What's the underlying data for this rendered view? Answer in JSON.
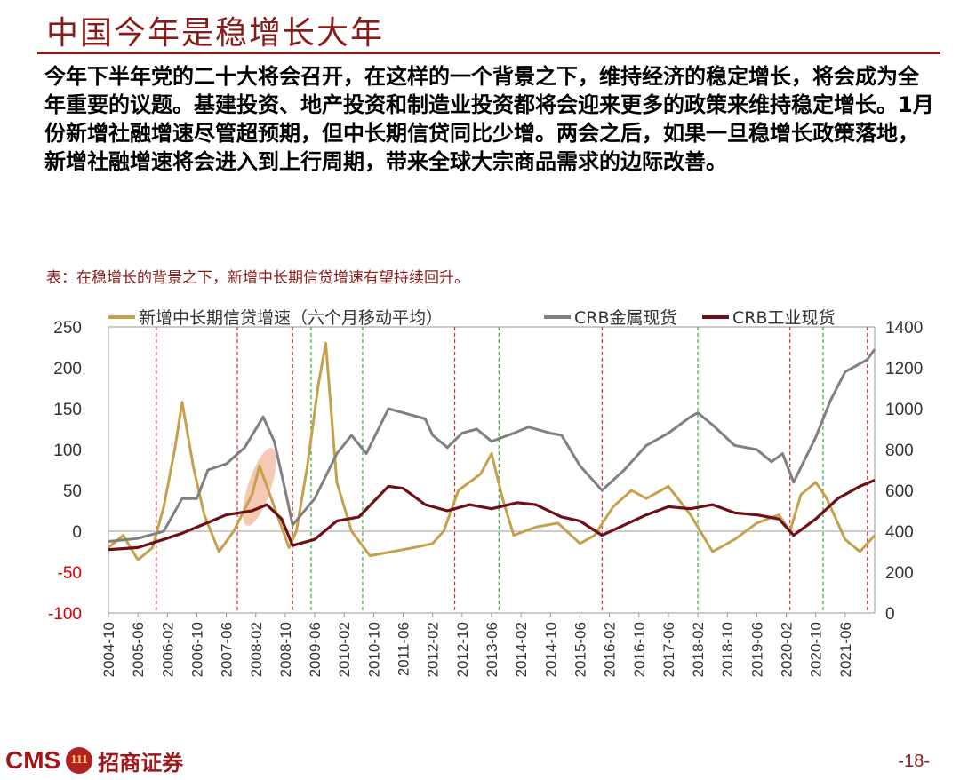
{
  "header": {
    "title": "中国今年是稳增长大年"
  },
  "body_text": "今年下半年党的二十大将会召开，在这样的一个背景之下，维持经济的稳定增长，将会成为全年重要的议题。基建投资、地产投资和制造业投资都将会迎来更多的政策来维持稳定增长。1月份新增社融增速尽管超预期，但中长期信贷同比少增。两会之后，如果一旦稳增长政策落地，新增社融增速将会进入到上行周期，带来全球大宗商品需求的边际改善。",
  "caption": "表：在稳增长的背景之下，新增中长期信贷增速有望持续回升。",
  "footer": {
    "brand_en": "CMS",
    "brand_logo": "111",
    "brand_cn": "招商证券",
    "page_number": "-18-"
  },
  "colors": {
    "brand": "#8b1a1a",
    "series_credit": "#c6a14b",
    "series_metal": "#808080",
    "series_industrial": "#6e0f16",
    "red_line": "#e03030",
    "green_line": "#2eaa45",
    "highlight": "#f2b79a"
  },
  "chart_data": {
    "type": "line",
    "title": "",
    "legend_position": "top",
    "x_start": "2004-10",
    "x_end": "2022-02",
    "x_tick_labels": [
      "2004-10",
      "2005-06",
      "2006-02",
      "2006-10",
      "2007-06",
      "2008-02",
      "2008-10",
      "2009-06",
      "2010-02",
      "2010-10",
      "2011-06",
      "2012-02",
      "2012-10",
      "2013-06",
      "2014-02",
      "2014-10",
      "2015-06",
      "2016-02",
      "2016-10",
      "2017-06",
      "2018-02",
      "2018-10",
      "2019-06",
      "2020-02",
      "2020-10",
      "2021-06"
    ],
    "y_left": {
      "range": [
        -100,
        250
      ],
      "ticks": [
        -100,
        -50,
        0,
        50,
        100,
        150,
        200,
        250
      ]
    },
    "y_right": {
      "range": [
        0,
        1400
      ],
      "ticks": [
        0,
        200,
        400,
        600,
        800,
        1000,
        1200,
        1400
      ]
    },
    "red_dashed_lines_x": [
      "2005-11",
      "2007-09",
      "2008-12",
      "2012-08",
      "2015-12",
      "2020-03",
      "2021-12"
    ],
    "green_dashed_lines_x": [
      "2009-05",
      "2010-07",
      "2013-08",
      "2018-02",
      "2020-12"
    ],
    "highlight_ellipse_center": {
      "x": "2008-03",
      "y": 50
    },
    "series": [
      {
        "name": "新增中长期信贷增速（六个月移动平均）",
        "axis": "left",
        "points": [
          [
            "2004-10",
            -20
          ],
          [
            "2005-02",
            -5
          ],
          [
            "2005-06",
            -35
          ],
          [
            "2005-10",
            -20
          ],
          [
            "2006-01",
            30
          ],
          [
            "2006-04",
            100
          ],
          [
            "2006-06",
            158
          ],
          [
            "2006-09",
            80
          ],
          [
            "2006-12",
            20
          ],
          [
            "2007-04",
            -25
          ],
          [
            "2007-08",
            0
          ],
          [
            "2008-01",
            45
          ],
          [
            "2008-03",
            80
          ],
          [
            "2008-07",
            30
          ],
          [
            "2008-11",
            -20
          ],
          [
            "2009-01",
            0
          ],
          [
            "2009-04",
            80
          ],
          [
            "2009-07",
            180
          ],
          [
            "2009-09",
            230
          ],
          [
            "2009-12",
            60
          ],
          [
            "2010-04",
            0
          ],
          [
            "2010-09",
            -30
          ],
          [
            "2011-03",
            -25
          ],
          [
            "2011-09",
            -20
          ],
          [
            "2012-02",
            -15
          ],
          [
            "2012-05",
            0
          ],
          [
            "2012-09",
            50
          ],
          [
            "2013-03",
            70
          ],
          [
            "2013-06",
            95
          ],
          [
            "2013-09",
            40
          ],
          [
            "2013-12",
            -5
          ],
          [
            "2014-06",
            5
          ],
          [
            "2014-12",
            10
          ],
          [
            "2015-06",
            -15
          ],
          [
            "2015-10",
            -5
          ],
          [
            "2016-03",
            30
          ],
          [
            "2016-08",
            50
          ],
          [
            "2016-12",
            40
          ],
          [
            "2017-06",
            55
          ],
          [
            "2017-12",
            20
          ],
          [
            "2018-06",
            -25
          ],
          [
            "2018-12",
            -10
          ],
          [
            "2019-06",
            10
          ],
          [
            "2019-12",
            20
          ],
          [
            "2020-03",
            0
          ],
          [
            "2020-06",
            45
          ],
          [
            "2020-10",
            60
          ],
          [
            "2021-01",
            40
          ],
          [
            "2021-06",
            -10
          ],
          [
            "2021-10",
            -25
          ],
          [
            "2022-02",
            -5
          ]
        ]
      },
      {
        "name": "CRB金属现货",
        "axis": "right",
        "points": [
          [
            "2004-10",
            350
          ],
          [
            "2005-06",
            365
          ],
          [
            "2006-01",
            400
          ],
          [
            "2006-06",
            560
          ],
          [
            "2006-10",
            560
          ],
          [
            "2007-01",
            700
          ],
          [
            "2007-06",
            730
          ],
          [
            "2007-11",
            810
          ],
          [
            "2008-04",
            960
          ],
          [
            "2008-07",
            840
          ],
          [
            "2008-10",
            600
          ],
          [
            "2008-12",
            430
          ],
          [
            "2009-06",
            560
          ],
          [
            "2009-12",
            780
          ],
          [
            "2010-04",
            870
          ],
          [
            "2010-08",
            780
          ],
          [
            "2011-02",
            1000
          ],
          [
            "2011-06",
            980
          ],
          [
            "2011-12",
            950
          ],
          [
            "2012-02",
            870
          ],
          [
            "2012-06",
            810
          ],
          [
            "2012-10",
            880
          ],
          [
            "2013-02",
            900
          ],
          [
            "2013-06",
            840
          ],
          [
            "2013-12",
            880
          ],
          [
            "2014-04",
            910
          ],
          [
            "2014-10",
            880
          ],
          [
            "2015-01",
            870
          ],
          [
            "2015-06",
            720
          ],
          [
            "2015-12",
            600
          ],
          [
            "2016-06",
            700
          ],
          [
            "2016-12",
            820
          ],
          [
            "2017-06",
            880
          ],
          [
            "2017-12",
            960
          ],
          [
            "2018-02",
            980
          ],
          [
            "2018-06",
            920
          ],
          [
            "2018-12",
            820
          ],
          [
            "2019-06",
            800
          ],
          [
            "2019-10",
            740
          ],
          [
            "2020-01",
            780
          ],
          [
            "2020-04",
            640
          ],
          [
            "2020-10",
            860
          ],
          [
            "2021-02",
            1040
          ],
          [
            "2021-06",
            1180
          ],
          [
            "2021-12",
            1240
          ],
          [
            "2022-02",
            1290
          ]
        ]
      },
      {
        "name": "CRB工业现货",
        "axis": "right",
        "points": [
          [
            "2004-10",
            310
          ],
          [
            "2005-06",
            320
          ],
          [
            "2006-01",
            360
          ],
          [
            "2006-06",
            390
          ],
          [
            "2006-10",
            420
          ],
          [
            "2007-06",
            480
          ],
          [
            "2008-01",
            500
          ],
          [
            "2008-05",
            530
          ],
          [
            "2008-09",
            460
          ],
          [
            "2008-12",
            330
          ],
          [
            "2009-06",
            360
          ],
          [
            "2009-12",
            450
          ],
          [
            "2010-06",
            470
          ],
          [
            "2011-02",
            620
          ],
          [
            "2011-06",
            610
          ],
          [
            "2011-12",
            530
          ],
          [
            "2012-06",
            500
          ],
          [
            "2012-12",
            530
          ],
          [
            "2013-06",
            510
          ],
          [
            "2014-01",
            540
          ],
          [
            "2014-06",
            530
          ],
          [
            "2015-01",
            470
          ],
          [
            "2015-06",
            450
          ],
          [
            "2015-12",
            380
          ],
          [
            "2016-06",
            430
          ],
          [
            "2016-12",
            480
          ],
          [
            "2017-06",
            520
          ],
          [
            "2017-12",
            510
          ],
          [
            "2018-06",
            530
          ],
          [
            "2018-12",
            490
          ],
          [
            "2019-06",
            480
          ],
          [
            "2019-12",
            460
          ],
          [
            "2020-04",
            380
          ],
          [
            "2020-10",
            460
          ],
          [
            "2021-04",
            560
          ],
          [
            "2021-10",
            620
          ],
          [
            "2022-02",
            650
          ]
        ]
      }
    ]
  }
}
